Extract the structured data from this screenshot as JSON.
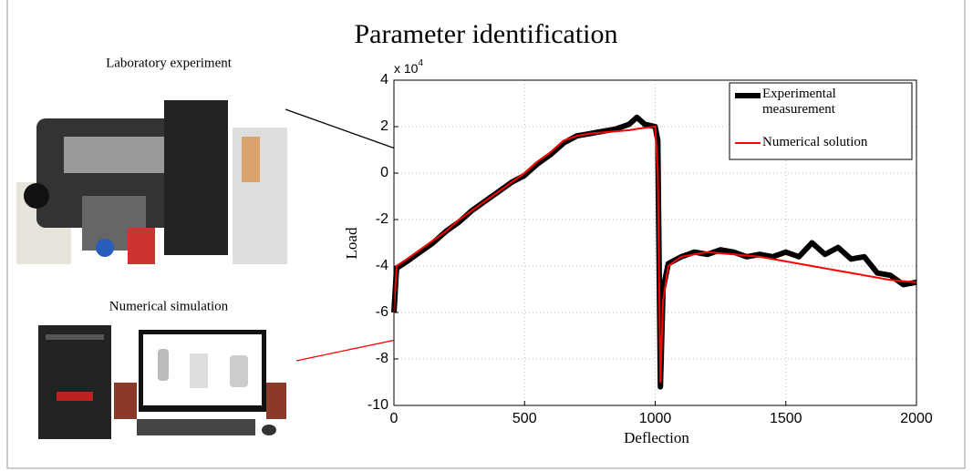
{
  "photo_captions": [
    "Laboratory experiment",
    "Numerical simulation"
  ],
  "chart_data": {
    "type": "line",
    "title": "Parameter identification",
    "xlabel": "Deflection",
    "ylabel": "Load",
    "yscale": {
      "base": "x 10",
      "exponent": "4"
    },
    "x": [
      0,
      10,
      50,
      100,
      150,
      200,
      250,
      300,
      350,
      400,
      450,
      500,
      550,
      600,
      650,
      700,
      750,
      800,
      850,
      900,
      930,
      960,
      1000,
      1010,
      1020,
      1030,
      1050,
      1100,
      1150,
      1200,
      1250,
      1300,
      1350,
      1400,
      1450,
      1500,
      1550,
      1600,
      1650,
      1700,
      1750,
      1800,
      1850,
      1900,
      1950,
      2000
    ],
    "series": [
      {
        "name": "Experimental measurement",
        "color": "#000000",
        "width": 6,
        "values": [
          -6,
          -4.1,
          -3.8,
          -3.4,
          -3.0,
          -2.5,
          -2.1,
          -1.6,
          -1.2,
          -0.8,
          -0.4,
          -0.1,
          0.4,
          0.8,
          1.3,
          1.6,
          1.7,
          1.8,
          1.9,
          2.1,
          2.4,
          2.1,
          2.0,
          1.4,
          -9.2,
          -5,
          -3.9,
          -3.6,
          -3.4,
          -3.5,
          -3.3,
          -3.4,
          -3.6,
          -3.5,
          -3.6,
          -3.4,
          -3.6,
          -3.0,
          -3.5,
          -3.2,
          -3.7,
          -3.6,
          -4.3,
          -4.4,
          -4.8,
          -4.7
        ]
      },
      {
        "name": "Numerical solution",
        "color": "#ff0000",
        "width": 2,
        "values": [
          -6,
          -4.0,
          -3.7,
          -3.3,
          -2.9,
          -2.5,
          -2.0,
          -1.6,
          -1.2,
          -0.8,
          -0.4,
          0,
          0.5,
          0.9,
          1.4,
          1.6,
          1.7,
          1.75,
          1.8,
          1.85,
          1.9,
          1.95,
          2.0,
          0,
          -9.0,
          -5.5,
          -4.0,
          -3.6,
          -3.5,
          -3.4,
          -3.45,
          -3.5,
          -3.55,
          -3.6,
          -3.7,
          -3.8,
          -3.9,
          -4.0,
          -4.1,
          -4.2,
          -4.3,
          -4.4,
          -4.5,
          -4.6,
          -4.65,
          -4.7
        ]
      }
    ],
    "xlim": [
      0,
      2000
    ],
    "xticks": [
      0,
      500,
      1000,
      1500,
      2000
    ],
    "ylim": [
      -10,
      4
    ],
    "yticks": [
      -10,
      -8,
      -6,
      -4,
      -2,
      0,
      2,
      4
    ],
    "grid": true,
    "legend": "upper right"
  }
}
